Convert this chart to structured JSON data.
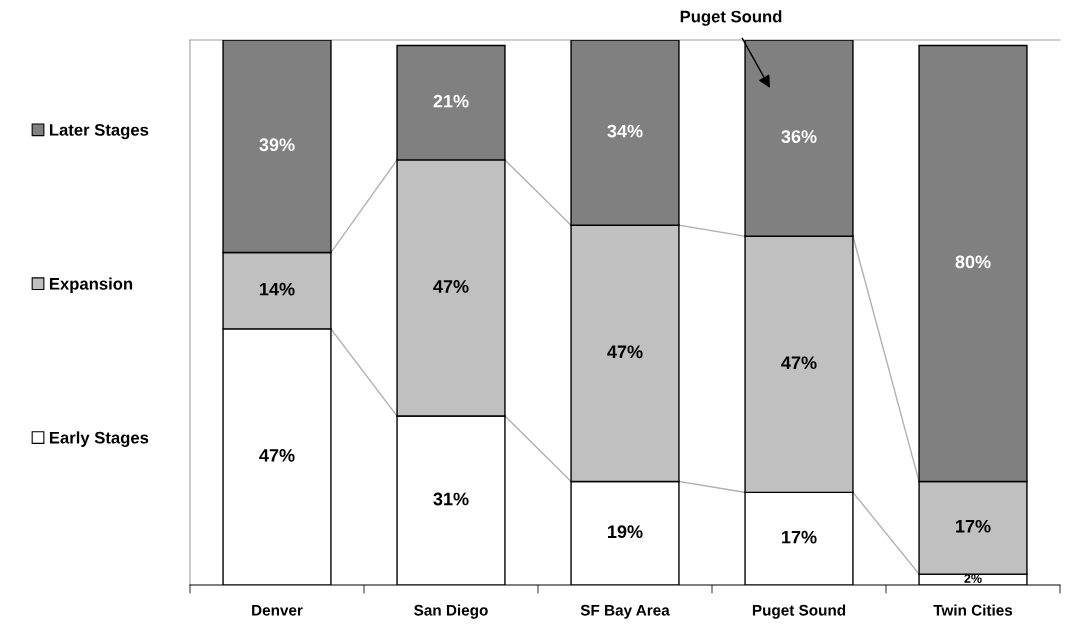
{
  "chart_data": {
    "type": "bar",
    "stacked": true,
    "categories": [
      "Denver",
      "San Diego",
      "SF Bay Area",
      "Puget Sound",
      "Twin Cities"
    ],
    "ylim": [
      0,
      100
    ],
    "tick_labels": "x",
    "grid": false,
    "legend": "left",
    "series": [
      {
        "name": "Early Stages",
        "color": "#ffffff",
        "values": [
          47,
          31,
          19,
          17,
          2
        ],
        "value_labels": [
          "47%",
          "31%",
          "19%",
          "17%",
          "2%"
        ]
      },
      {
        "name": "Expansion",
        "color": "#c0c0c0",
        "values": [
          14,
          47,
          47,
          47,
          17
        ],
        "value_labels": [
          "14%",
          "47%",
          "47%",
          "47%",
          "17%"
        ]
      },
      {
        "name": "Later Stages",
        "color": "#808080",
        "values": [
          39,
          21,
          34,
          36,
          80
        ],
        "value_labels": [
          "39%",
          "21%",
          "34%",
          "36%",
          "80%"
        ]
      }
    ],
    "annotations": [
      "Puget Sound"
    ]
  }
}
